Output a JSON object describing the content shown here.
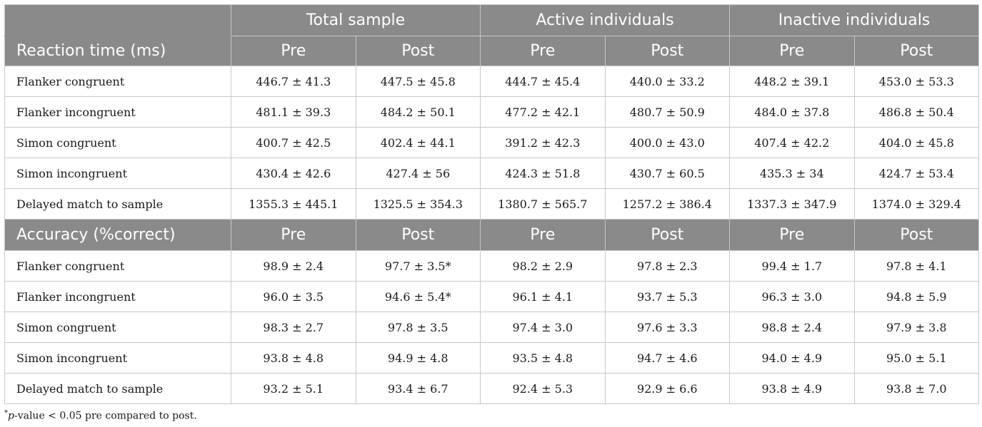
{
  "groups": [
    "Total sample",
    "Active individuals",
    "Inactive individuals"
  ],
  "sub_headers": [
    "Pre",
    "Post",
    "Pre",
    "Post",
    "Pre",
    "Post"
  ],
  "sections": [
    {
      "title": "Reaction time (ms)",
      "rows": [
        {
          "label": "Flanker congruent",
          "values": [
            "446.7 ± 41.3",
            "447.5 ± 45.8",
            "444.7 ± 45.4",
            "440.0 ± 33.2",
            "448.2 ± 39.1",
            "453.0 ± 53.3"
          ]
        },
        {
          "label": "Flanker incongruent",
          "values": [
            "481.1 ± 39.3",
            "484.2 ± 50.1",
            "477.2 ± 42.1",
            "480.7 ± 50.9",
            "484.0 ± 37.8",
            "486.8 ± 50.4"
          ]
        },
        {
          "label": "Simon congruent",
          "values": [
            "400.7 ± 42.5",
            "402.4 ± 44.1",
            "391.2 ± 42.3",
            "400.0 ± 43.0",
            "407.4 ± 42.2",
            "404.0 ± 45.8"
          ]
        },
        {
          "label": "Simon incongruent",
          "values": [
            "430.4 ± 42.6",
            "427.4 ± 56",
            "424.3 ± 51.8",
            "430.7 ± 60.5",
            "435.3 ± 34",
            "424.7 ± 53.4"
          ]
        },
        {
          "label": "Delayed match to sample",
          "values": [
            "1355.3 ± 445.1",
            "1325.5 ± 354.3",
            "1380.7 ± 565.7",
            "1257.2 ± 386.4",
            "1337.3 ± 347.9",
            "1374.0 ± 329.4"
          ]
        }
      ]
    },
    {
      "title": "Accuracy (%correct)",
      "rows": [
        {
          "label": "Flanker congruent",
          "values": [
            "98.9 ± 2.4",
            "97.7 ± 3.5*",
            "98.2 ± 2.9",
            "97.8 ± 2.3",
            "99.4 ± 1.7",
            "97.8 ± 4.1"
          ]
        },
        {
          "label": "Flanker incongruent",
          "values": [
            "96.0 ± 3.5",
            "94.6 ± 5.4*",
            "96.1 ± 4.1",
            "93.7 ± 5.3",
            "96.3 ± 3.0",
            "94.8 ± 5.9"
          ]
        },
        {
          "label": "Simon congruent",
          "values": [
            "98.3 ± 2.7",
            "97.8 ± 3.5",
            "97.4 ± 3.0",
            "97.6 ± 3.3",
            "98.8 ± 2.4",
            "97.9 ± 3.8"
          ]
        },
        {
          "label": "Simon incongruent",
          "values": [
            "93.8 ± 4.8",
            "94.9 ± 4.8",
            "93.5 ± 4.8",
            "94.7 ± 4.6",
            "94.0 ± 4.9",
            "95.0 ± 5.1"
          ]
        },
        {
          "label": "Delayed match to sample",
          "values": [
            "93.2 ± 5.1",
            "93.4 ± 6.7",
            "92.4 ± 5.3",
            "92.9 ± 6.6",
            "93.8 ± 4.9",
            "93.8 ± 7.0"
          ]
        }
      ]
    }
  ],
  "footnote": {
    "marker": "*",
    "term": "p",
    "text": "-value < 0.05 pre compared to post."
  }
}
